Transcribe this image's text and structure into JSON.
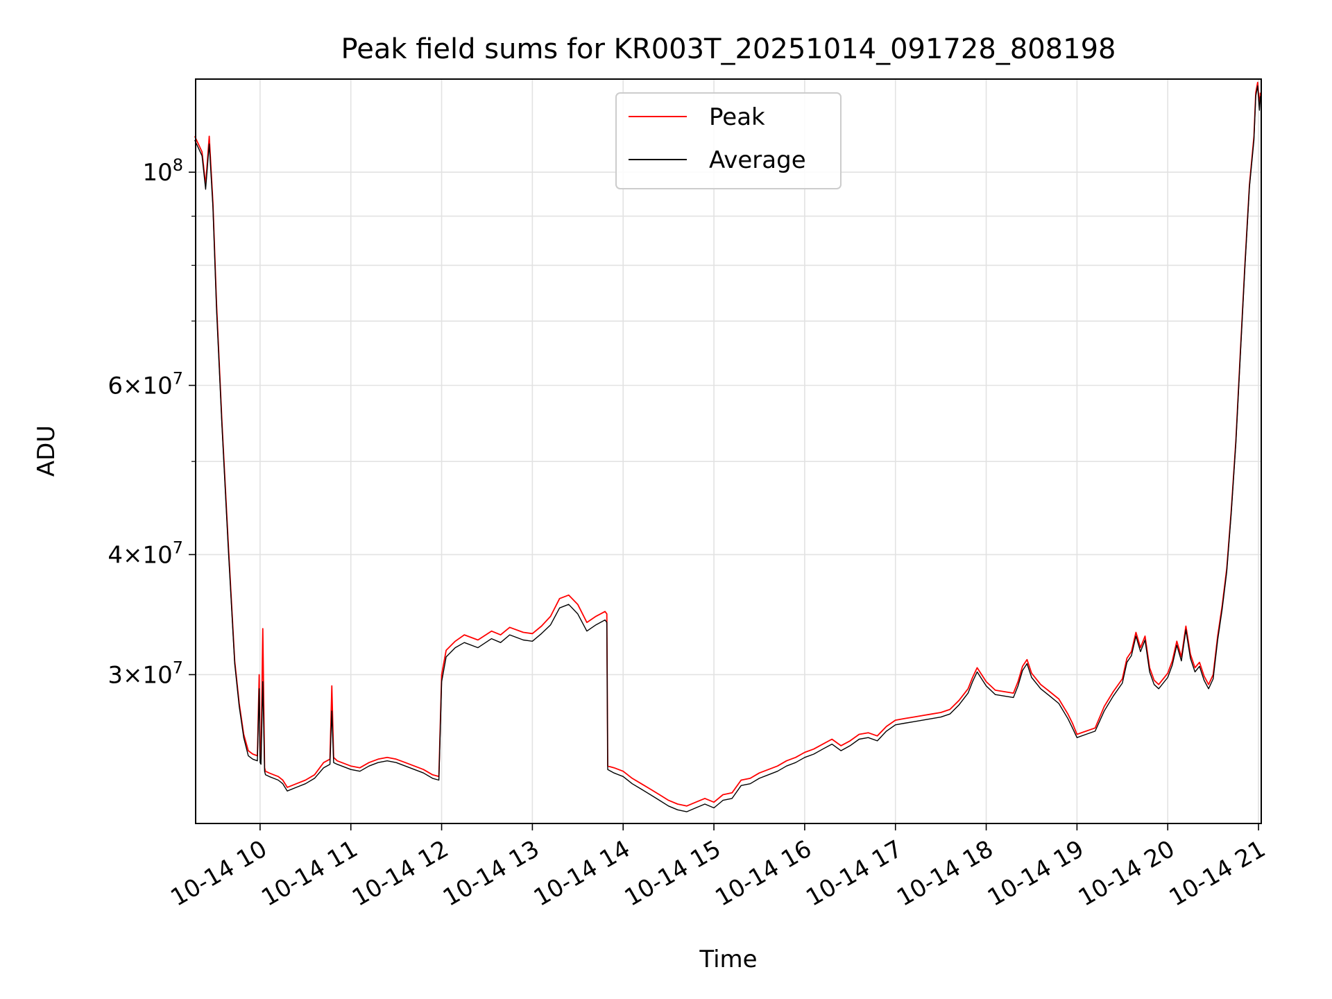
{
  "chart_data": {
    "type": "line",
    "title": "Peak field sums for KR003T_20251014_091728_808198",
    "xlabel": "Time",
    "ylabel": "ADU",
    "y_scale": "log",
    "ylim": [
      21000000,
      125000000
    ],
    "xlim": [
      9.29,
      21.03
    ],
    "grid": true,
    "legend_position": "upper center",
    "x_tick_values": [
      10,
      11,
      12,
      13,
      14,
      15,
      16,
      17,
      18,
      19,
      20,
      21
    ],
    "x_tick_labels": [
      "10-14 10",
      "10-14 11",
      "10-14 12",
      "10-14 13",
      "10-14 14",
      "10-14 15",
      "10-14 16",
      "10-14 17",
      "10-14 18",
      "10-14 19",
      "10-14 20",
      "10-14 21"
    ],
    "y_major_ticks": [
      {
        "value": 100000000,
        "mantissa": "",
        "exponent": "8"
      },
      {
        "value": 60000000,
        "mantissa": "6",
        "exponent": "7"
      },
      {
        "value": 40000000,
        "mantissa": "4",
        "exponent": "7"
      },
      {
        "value": 30000000,
        "mantissa": "3",
        "exponent": "7"
      }
    ],
    "y_minor_gridlines": [
      50000000,
      70000000,
      80000000,
      90000000
    ],
    "series": [
      {
        "name": "Peak",
        "color": "#ff0000",
        "x": [
          9.28,
          9.36,
          9.4,
          9.44,
          9.48,
          9.52,
          9.58,
          9.65,
          9.72,
          9.77,
          9.82,
          9.87,
          9.92,
          9.97,
          9.99,
          10.0,
          10.01,
          10.03,
          10.05,
          10.06,
          10.1,
          10.15,
          10.2,
          10.25,
          10.3,
          10.4,
          10.5,
          10.6,
          10.7,
          10.77,
          10.79,
          10.81,
          10.85,
          10.95,
          11.0,
          11.1,
          11.2,
          11.3,
          11.4,
          11.5,
          11.6,
          11.7,
          11.75,
          11.8,
          11.9,
          11.97,
          12.0,
          12.05,
          12.15,
          12.25,
          12.4,
          12.55,
          12.65,
          12.75,
          12.9,
          13.0,
          13.1,
          13.2,
          13.3,
          13.4,
          13.5,
          13.6,
          13.7,
          13.8,
          13.82,
          13.83,
          13.9,
          14.0,
          14.1,
          14.2,
          14.3,
          14.4,
          14.5,
          14.6,
          14.7,
          14.8,
          14.9,
          15.0,
          15.1,
          15.2,
          15.3,
          15.4,
          15.5,
          15.6,
          15.7,
          15.8,
          15.9,
          16.0,
          16.1,
          16.2,
          16.3,
          16.4,
          16.5,
          16.6,
          16.7,
          16.8,
          16.9,
          17.0,
          17.1,
          17.2,
          17.3,
          17.4,
          17.5,
          17.6,
          17.7,
          17.8,
          17.85,
          17.9,
          18.0,
          18.1,
          18.2,
          18.3,
          18.35,
          18.4,
          18.45,
          18.5,
          18.6,
          18.7,
          18.8,
          18.9,
          18.95,
          19.0,
          19.1,
          19.2,
          19.3,
          19.4,
          19.5,
          19.55,
          19.6,
          19.65,
          19.7,
          19.75,
          19.8,
          19.85,
          19.9,
          20.0,
          20.05,
          20.1,
          20.15,
          20.2,
          20.25,
          20.3,
          20.35,
          20.4,
          20.45,
          20.5,
          20.55,
          20.6,
          20.65,
          20.7,
          20.75,
          20.8,
          20.85,
          20.9,
          20.95,
          20.97,
          20.99,
          21.01,
          21.02
        ],
        "y": [
          109000000,
          105000000,
          97000000,
          109000000,
          93000000,
          73000000,
          55000000,
          41000000,
          31000000,
          28000000,
          26000000,
          25000000,
          24800000,
          24700000,
          30000000,
          24600000,
          24500000,
          33500000,
          24000000,
          23800000,
          23700000,
          23600000,
          23500000,
          23300000,
          22900000,
          23100000,
          23300000,
          23600000,
          24300000,
          24500000,
          29200000,
          24600000,
          24400000,
          24200000,
          24100000,
          24000000,
          24300000,
          24500000,
          24600000,
          24500000,
          24300000,
          24100000,
          24000000,
          23900000,
          23600000,
          23500000,
          30000000,
          31800000,
          32500000,
          33000000,
          32600000,
          33300000,
          33000000,
          33600000,
          33200000,
          33100000,
          33700000,
          34500000,
          36000000,
          36300000,
          35500000,
          34000000,
          34500000,
          34900000,
          34700000,
          24100000,
          24000000,
          23800000,
          23400000,
          23100000,
          22800000,
          22500000,
          22200000,
          22000000,
          21900000,
          22100000,
          22300000,
          22100000,
          22500000,
          22600000,
          23300000,
          23400000,
          23700000,
          23900000,
          24100000,
          24400000,
          24600000,
          24900000,
          25100000,
          25400000,
          25700000,
          25300000,
          25600000,
          26000000,
          26100000,
          25900000,
          26500000,
          26900000,
          27000000,
          27100000,
          27200000,
          27300000,
          27400000,
          27600000,
          28200000,
          29000000,
          29800000,
          30500000,
          29500000,
          28900000,
          28800000,
          28700000,
          29500000,
          30600000,
          31100000,
          30100000,
          29300000,
          28800000,
          28300000,
          27300000,
          26700000,
          26000000,
          26200000,
          26400000,
          27800000,
          28800000,
          29700000,
          31200000,
          31700000,
          33200000,
          32000000,
          32900000,
          30500000,
          29600000,
          29300000,
          30100000,
          31000000,
          32500000,
          31300000,
          33700000,
          31500000,
          30500000,
          30900000,
          29900000,
          29300000,
          30000000,
          32900000,
          35400000,
          38700000,
          44500000,
          52500000,
          65000000,
          80000000,
          97000000,
          109000000,
          121000000,
          124000000,
          117000000,
          121000000
        ]
      },
      {
        "name": "Average",
        "color": "#000000",
        "x": [
          9.28,
          9.36,
          9.4,
          9.44,
          9.48,
          9.52,
          9.58,
          9.65,
          9.72,
          9.77,
          9.82,
          9.87,
          9.92,
          9.97,
          9.99,
          10.0,
          10.01,
          10.03,
          10.05,
          10.06,
          10.1,
          10.15,
          10.2,
          10.25,
          10.3,
          10.4,
          10.5,
          10.6,
          10.7,
          10.77,
          10.79,
          10.81,
          10.85,
          10.95,
          11.0,
          11.1,
          11.2,
          11.3,
          11.4,
          11.5,
          11.6,
          11.7,
          11.75,
          11.8,
          11.9,
          11.97,
          12.0,
          12.05,
          12.15,
          12.25,
          12.4,
          12.55,
          12.65,
          12.75,
          12.9,
          13.0,
          13.1,
          13.2,
          13.3,
          13.4,
          13.5,
          13.6,
          13.7,
          13.8,
          13.82,
          13.83,
          13.9,
          14.0,
          14.1,
          14.2,
          14.3,
          14.4,
          14.5,
          14.6,
          14.7,
          14.8,
          14.9,
          15.0,
          15.1,
          15.2,
          15.3,
          15.4,
          15.5,
          15.6,
          15.7,
          15.8,
          15.9,
          16.0,
          16.1,
          16.2,
          16.3,
          16.4,
          16.5,
          16.6,
          16.7,
          16.8,
          16.9,
          17.0,
          17.1,
          17.2,
          17.3,
          17.4,
          17.5,
          17.6,
          17.7,
          17.8,
          17.85,
          17.9,
          18.0,
          18.1,
          18.2,
          18.3,
          18.35,
          18.4,
          18.45,
          18.5,
          18.6,
          18.7,
          18.8,
          18.9,
          18.95,
          19.0,
          19.1,
          19.2,
          19.3,
          19.4,
          19.5,
          19.55,
          19.6,
          19.65,
          19.7,
          19.75,
          19.8,
          19.85,
          19.9,
          20.0,
          20.05,
          20.1,
          20.15,
          20.2,
          20.25,
          20.3,
          20.35,
          20.4,
          20.45,
          20.5,
          20.55,
          20.6,
          20.65,
          20.7,
          20.75,
          20.8,
          20.85,
          20.9,
          20.95,
          20.97,
          20.99,
          21.01,
          21.02
        ],
        "y": [
          108000000,
          104000000,
          96000000,
          107000000,
          92000000,
          72000000,
          54500000,
          40500000,
          30800000,
          27800000,
          25800000,
          24700000,
          24500000,
          24400000,
          29000000,
          24300000,
          24200000,
          29500000,
          23800000,
          23600000,
          23500000,
          23400000,
          23300000,
          23100000,
          22700000,
          22900000,
          23100000,
          23400000,
          24000000,
          24200000,
          27500000,
          24300000,
          24200000,
          24000000,
          23900000,
          23800000,
          24100000,
          24300000,
          24400000,
          24300000,
          24100000,
          23900000,
          23800000,
          23700000,
          23400000,
          23300000,
          29500000,
          31300000,
          32000000,
          32400000,
          32000000,
          32700000,
          32400000,
          33000000,
          32600000,
          32500000,
          33100000,
          33800000,
          35200000,
          35500000,
          34700000,
          33300000,
          33800000,
          34200000,
          34000000,
          23900000,
          23700000,
          23500000,
          23100000,
          22800000,
          22500000,
          22200000,
          21900000,
          21700000,
          21600000,
          21800000,
          22000000,
          21800000,
          22200000,
          22300000,
          23000000,
          23100000,
          23400000,
          23600000,
          23800000,
          24100000,
          24300000,
          24600000,
          24800000,
          25100000,
          25400000,
          25000000,
          25300000,
          25700000,
          25800000,
          25600000,
          26200000,
          26600000,
          26700000,
          26800000,
          26900000,
          27000000,
          27100000,
          27300000,
          27900000,
          28700000,
          29500000,
          30200000,
          29200000,
          28600000,
          28500000,
          28400000,
          29200000,
          30300000,
          30800000,
          29800000,
          29000000,
          28500000,
          28000000,
          27000000,
          26400000,
          25800000,
          26000000,
          26200000,
          27500000,
          28500000,
          29400000,
          30900000,
          31400000,
          32900000,
          31700000,
          32600000,
          30200000,
          29300000,
          29000000,
          29800000,
          30700000,
          32200000,
          31000000,
          33400000,
          31200000,
          30200000,
          30600000,
          29600000,
          29000000,
          29700000,
          32600000,
          35100000,
          38400000,
          44200000,
          52200000,
          64500000,
          79500000,
          96500000,
          108000000,
          120000000,
          123000000,
          116000000,
          120000000
        ]
      }
    ]
  }
}
